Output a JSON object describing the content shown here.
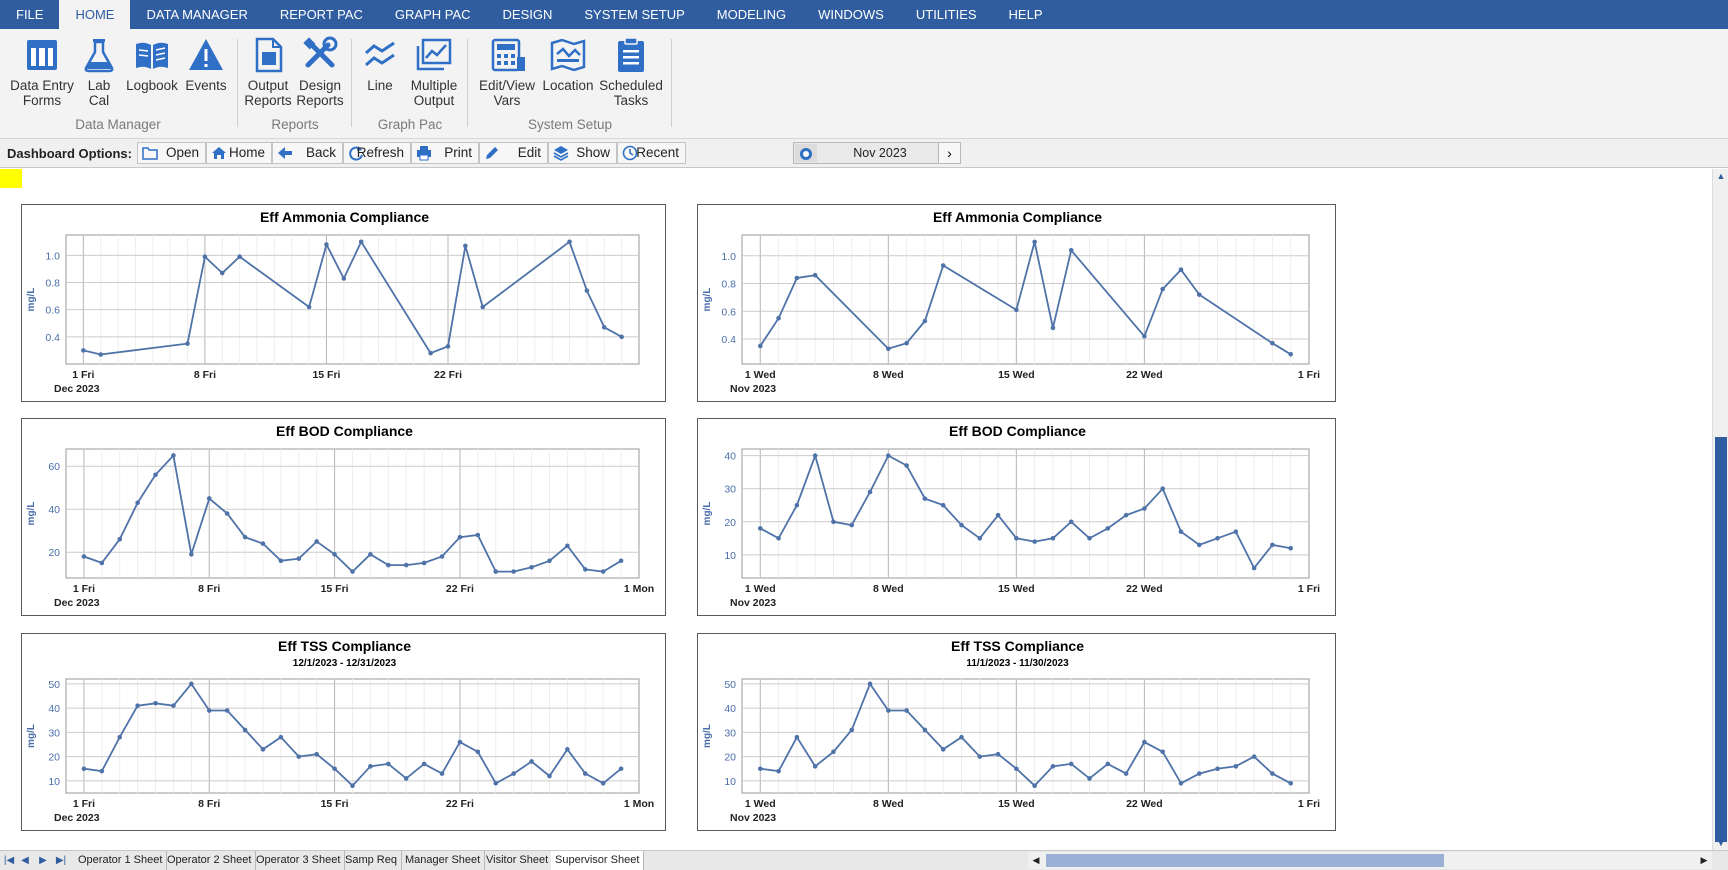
{
  "menu": {
    "items": [
      "FILE",
      "HOME",
      "DATA MANAGER",
      "REPORT PAC",
      "GRAPH PAC",
      "DESIGN",
      "SYSTEM SETUP",
      "MODELING",
      "WINDOWS",
      "UTILITIES",
      "HELP"
    ],
    "active": "HOME"
  },
  "ribbon": {
    "groups": [
      {
        "label": "Data Manager",
        "buttons": [
          {
            "line1": "Data Entry",
            "line2": "Forms",
            "icon": "form-table-icon"
          },
          {
            "line1": "Lab",
            "line2": "Cal",
            "icon": "flask-icon"
          },
          {
            "line1": "Logbook",
            "line2": "",
            "icon": "book-icon"
          },
          {
            "line1": "Events",
            "line2": "",
            "icon": "warning-icon"
          }
        ]
      },
      {
        "label": "Reports",
        "buttons": [
          {
            "line1": "Output",
            "line2": "Reports",
            "icon": "document-icon"
          },
          {
            "line1": "Design",
            "line2": "Reports",
            "icon": "tools-icon"
          }
        ]
      },
      {
        "label": "Graph Pac",
        "buttons": [
          {
            "line1": "Line",
            "line2": "",
            "icon": "line-graph-icon"
          },
          {
            "line1": "Multiple",
            "line2": "Output",
            "icon": "multi-graph-icon"
          }
        ]
      },
      {
        "label": "System Setup",
        "buttons": [
          {
            "line1": "Edit/View",
            "line2": "Vars",
            "icon": "calculator-icon"
          },
          {
            "line1": "Location",
            "line2": "",
            "icon": "map-icon"
          },
          {
            "line1": "Scheduled",
            "line2": "Tasks",
            "icon": "clipboard-icon"
          }
        ]
      }
    ]
  },
  "dashboard_options": {
    "label": "Dashboard Options:",
    "buttons": [
      {
        "label": "Open",
        "icon": "folder-icon"
      },
      {
        "label": "Home",
        "icon": "home-icon"
      },
      {
        "label": "Back",
        "icon": "back-arrow-icon"
      },
      {
        "label": "Refresh",
        "icon": "refresh-icon"
      },
      {
        "label": "Print",
        "icon": "printer-icon"
      },
      {
        "label": "Edit",
        "icon": "pencil-icon"
      },
      {
        "label": "Show",
        "icon": "layers-icon"
      },
      {
        "label": "Recent",
        "icon": "clock-icon"
      }
    ],
    "period": "Nov 2023",
    "next_symbol": "›"
  },
  "sheet_tabs": {
    "nav_symbols": [
      "|◀",
      "◀",
      "▶",
      "▶|"
    ],
    "tabs": [
      "Operator 1 Sheet",
      "Operator 2 Sheet",
      "Operator 3 Sheet",
      "Samp Req",
      "Manager Sheet",
      "Visitor Sheet",
      "Supervisor Sheet"
    ],
    "active": "Supervisor Sheet"
  },
  "colors": {
    "accent": "#2f5da0",
    "series": "#4f73a8",
    "axis_text": "#4a6ea9"
  },
  "chart_data": [
    {
      "type": "line",
      "title": "Eff Ammonia Compliance",
      "subtitle": "",
      "ylabel": "mg/L",
      "x_period_label": "Dec 2023",
      "x": [
        1,
        2,
        7,
        8,
        9,
        10,
        14,
        15,
        16,
        17,
        21,
        22,
        23,
        24,
        29,
        30,
        31,
        32
      ],
      "values": [
        0.3,
        0.27,
        0.35,
        0.99,
        0.87,
        0.99,
        0.62,
        1.08,
        0.83,
        1.1,
        0.28,
        0.33,
        1.07,
        0.62,
        1.1,
        0.74,
        0.47,
        0.4
      ],
      "xlim": [
        0,
        33
      ],
      "ylim": [
        0.2,
        1.15
      ],
      "yticks": [
        0.4,
        0.6,
        0.8,
        1.0
      ],
      "ytick_labels": [
        "0.4",
        "0.6",
        "0.8",
        "1.0"
      ],
      "xticks": [
        1,
        8,
        15,
        22
      ],
      "xtick_labels": [
        "1 Fri",
        "8 Fri",
        "15 Fri",
        "22 Fri"
      ]
    },
    {
      "type": "line",
      "title": "Eff Ammonia Compliance",
      "subtitle": "",
      "ylabel": "mg/L",
      "x_period_label": "Nov 2023",
      "x": [
        1,
        2,
        3,
        4,
        8,
        9,
        10,
        11,
        15,
        16,
        17,
        18,
        22,
        23,
        24,
        25,
        29,
        30
      ],
      "values": [
        0.35,
        0.55,
        0.84,
        0.86,
        0.33,
        0.37,
        0.53,
        0.93,
        0.61,
        1.1,
        0.48,
        1.04,
        0.42,
        0.76,
        0.9,
        0.72,
        0.37,
        0.29
      ],
      "xlim": [
        0,
        31
      ],
      "ylim": [
        0.22,
        1.15
      ],
      "yticks": [
        0.4,
        0.6,
        0.8,
        1.0
      ],
      "ytick_labels": [
        "0.4",
        "0.6",
        "0.8",
        "1.0"
      ],
      "xticks": [
        1,
        8,
        15,
        22,
        31
      ],
      "xtick_labels": [
        "1 Wed",
        "8 Wed",
        "15 Wed",
        "22 Wed",
        "1 Fri"
      ]
    },
    {
      "type": "line",
      "title": "Eff BOD Compliance",
      "subtitle": "",
      "ylabel": "mg/L",
      "x_period_label": "Dec 2023",
      "x": [
        1,
        2,
        3,
        4,
        5,
        6,
        7,
        8,
        9,
        10,
        11,
        12,
        13,
        14,
        15,
        16,
        17,
        18,
        19,
        20,
        21,
        22,
        23,
        24,
        25,
        26,
        27,
        28,
        29,
        30,
        31
      ],
      "values": [
        18,
        15,
        26,
        43,
        56,
        65,
        19,
        45,
        38,
        27,
        24,
        16,
        17,
        25,
        19,
        11,
        19,
        14,
        14,
        15,
        18,
        27,
        28,
        11,
        11,
        13,
        16,
        23,
        12,
        11,
        16
      ],
      "xlim": [
        0,
        32
      ],
      "ylim": [
        8,
        68
      ],
      "yticks": [
        20,
        40,
        60
      ],
      "ytick_labels": [
        "20",
        "40",
        "60"
      ],
      "xticks": [
        1,
        8,
        15,
        22,
        32
      ],
      "xtick_labels": [
        "1 Fri",
        "8 Fri",
        "15 Fri",
        "22 Fri",
        "1 Mon"
      ]
    },
    {
      "type": "line",
      "title": "Eff BOD Compliance",
      "subtitle": "",
      "ylabel": "mg/L",
      "x_period_label": "Nov 2023",
      "x": [
        1,
        2,
        3,
        4,
        5,
        6,
        7,
        8,
        9,
        10,
        11,
        12,
        13,
        14,
        15,
        16,
        17,
        18,
        19,
        20,
        21,
        22,
        23,
        24,
        25,
        26,
        27,
        28,
        29,
        30
      ],
      "values": [
        18,
        15,
        25,
        40,
        20,
        19,
        29,
        40,
        37,
        27,
        25,
        19,
        15,
        22,
        15,
        14,
        15,
        20,
        15,
        18,
        22,
        24,
        30,
        17,
        13,
        15,
        17,
        6,
        13,
        12
      ],
      "xlim": [
        0,
        31
      ],
      "ylim": [
        3,
        42
      ],
      "yticks": [
        10,
        20,
        30,
        40
      ],
      "ytick_labels": [
        "10",
        "20",
        "30",
        "40"
      ],
      "xticks": [
        1,
        8,
        15,
        22,
        31
      ],
      "xtick_labels": [
        "1 Wed",
        "8 Wed",
        "15 Wed",
        "22 Wed",
        "1 Fri"
      ]
    },
    {
      "type": "line",
      "title": "Eff TSS Compliance",
      "subtitle": "12/1/2023 - 12/31/2023",
      "ylabel": "mg/L",
      "x_period_label": "Dec 2023",
      "x": [
        1,
        2,
        3,
        4,
        5,
        6,
        7,
        8,
        9,
        10,
        11,
        12,
        13,
        14,
        15,
        16,
        17,
        18,
        19,
        20,
        21,
        22,
        23,
        24,
        25,
        26,
        27,
        28,
        29,
        30,
        31
      ],
      "values": [
        15,
        14,
        28,
        41,
        42,
        41,
        50,
        39,
        39,
        31,
        23,
        28,
        20,
        21,
        15,
        8,
        16,
        17,
        11,
        17,
        13,
        26,
        22,
        9,
        13,
        18,
        12,
        23,
        13,
        9,
        15
      ],
      "xlim": [
        0,
        32
      ],
      "ylim": [
        5,
        52
      ],
      "yticks": [
        10,
        20,
        30,
        40,
        50
      ],
      "ytick_labels": [
        "10",
        "20",
        "30",
        "40",
        "50"
      ],
      "xticks": [
        1,
        8,
        15,
        22,
        32
      ],
      "xtick_labels": [
        "1 Fri",
        "8 Fri",
        "15 Fri",
        "22 Fri",
        "1 Mon"
      ]
    },
    {
      "type": "line",
      "title": "Eff TSS Compliance",
      "subtitle": "11/1/2023 - 11/30/2023",
      "ylabel": "mg/L",
      "x_period_label": "Nov 2023",
      "x": [
        1,
        2,
        3,
        4,
        5,
        6,
        7,
        8,
        9,
        10,
        11,
        12,
        13,
        14,
        15,
        16,
        17,
        18,
        19,
        20,
        21,
        22,
        23,
        24,
        25,
        26,
        27,
        28,
        29,
        30
      ],
      "values": [
        15,
        14,
        28,
        16,
        22,
        31,
        50,
        39,
        39,
        31,
        23,
        28,
        20,
        21,
        15,
        8,
        16,
        17,
        11,
        17,
        13,
        26,
        22,
        9,
        13,
        15,
        16,
        20,
        13,
        9
      ],
      "xlim": [
        0,
        31
      ],
      "ylim": [
        5,
        52
      ],
      "yticks": [
        10,
        20,
        30,
        40,
        50
      ],
      "ytick_labels": [
        "10",
        "20",
        "30",
        "40",
        "50"
      ],
      "xticks": [
        1,
        8,
        15,
        22,
        31
      ],
      "xtick_labels": [
        "1 Wed",
        "8 Wed",
        "15 Wed",
        "22 Wed",
        "1 Fri"
      ]
    }
  ]
}
